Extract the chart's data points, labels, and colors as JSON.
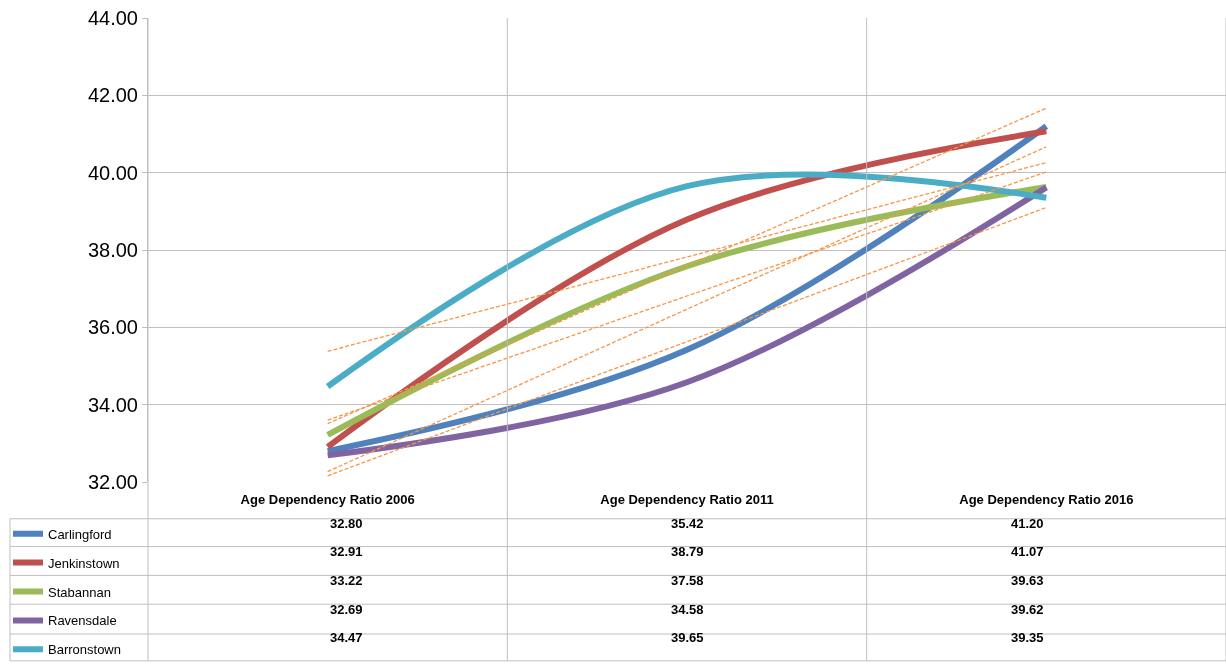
{
  "chart_data": {
    "type": "line",
    "categories": [
      "Age Dependency Ratio 2006",
      "Age Dependency Ratio 2011",
      "Age Dependency Ratio 2016"
    ],
    "series": [
      {
        "name": "Carlingford",
        "color": "#4f81bd",
        "values": [
          32.8,
          35.42,
          41.2
        ],
        "value_labels": [
          "32.80",
          "35.42",
          "41.20"
        ]
      },
      {
        "name": "Jenkinstown",
        "color": "#c0504d",
        "values": [
          32.91,
          38.79,
          41.07
        ],
        "value_labels": [
          "32.91",
          "38.79",
          "41.07"
        ]
      },
      {
        "name": "Stabannan",
        "color": "#9bbb59",
        "values": [
          33.22,
          37.58,
          39.63
        ],
        "value_labels": [
          "33.22",
          "37.58",
          "39.63"
        ]
      },
      {
        "name": "Ravensdale",
        "color": "#8064a2",
        "values": [
          32.69,
          34.58,
          39.62
        ],
        "value_labels": [
          "32.69",
          "34.58",
          "39.62"
        ]
      },
      {
        "name": "Barronstown",
        "color": "#4bacc6",
        "values": [
          34.47,
          39.65,
          39.35
        ],
        "value_labels": [
          "34.47",
          "39.65",
          "39.35"
        ]
      },
      {
        "type": "line",
        "color": "#f79646",
        "line_style": "dashed",
        "values": [
          32.27,
          36.47,
          40.67
        ]
      },
      {
        "type": "line",
        "color": "#f79646",
        "line_style": "dashed",
        "values": [
          33.51,
          37.59,
          41.67
        ]
      },
      {
        "type": "line",
        "color": "#f79646",
        "line_style": "dashed",
        "values": [
          33.6,
          36.81,
          40.02
        ]
      },
      {
        "type": "line",
        "color": "#f79646",
        "line_style": "dashed",
        "values": [
          32.16,
          35.63,
          39.1
        ]
      },
      {
        "type": "line",
        "color": "#f79646",
        "line_style": "dashed",
        "values": [
          35.38,
          37.82,
          40.26
        ]
      }
    ],
    "ylim": [
      32,
      44
    ],
    "yticks": [
      {
        "value": 32,
        "label": "32.00"
      },
      {
        "value": 34,
        "label": "34.00"
      },
      {
        "value": 36,
        "label": "36.00"
      },
      {
        "value": 38,
        "label": "38.00"
      },
      {
        "value": 40,
        "label": "40.00"
      },
      {
        "value": 42,
        "label": "42.00"
      },
      {
        "value": 44,
        "label": "44.00"
      }
    ],
    "grid": "y",
    "legend": "bottom left",
    "line_style": "solid",
    "marker": "none"
  }
}
